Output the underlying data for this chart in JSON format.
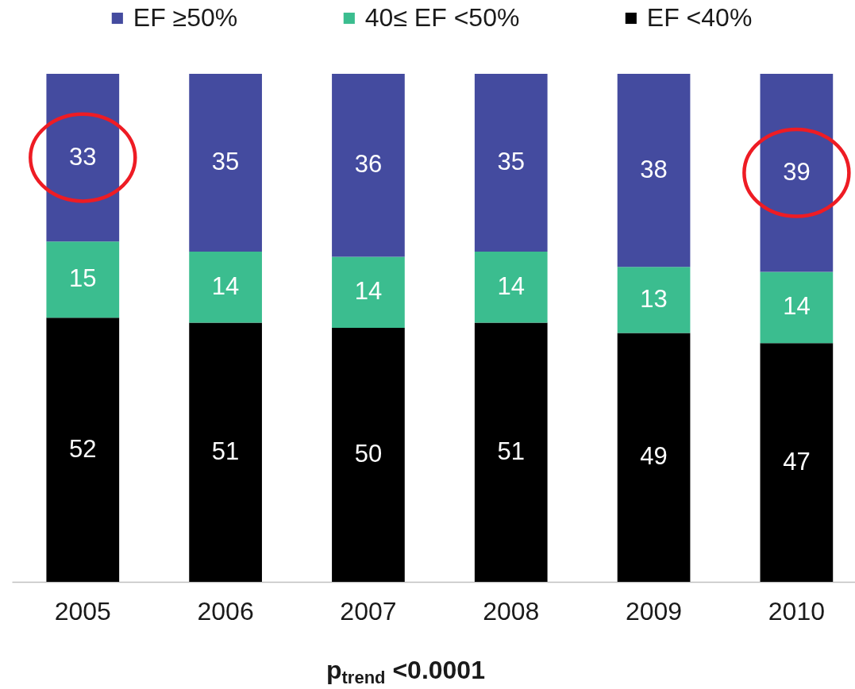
{
  "chart_data": {
    "type": "bar",
    "stacked": true,
    "categories": [
      "2005",
      "2006",
      "2007",
      "2008",
      "2009",
      "2010"
    ],
    "series": [
      {
        "name": "EF <40%",
        "color": "#000000",
        "values": [
          52,
          51,
          50,
          51,
          49,
          47
        ]
      },
      {
        "name": "40≤ EF <50%",
        "color": "#3bbd8f",
        "values": [
          15,
          14,
          14,
          14,
          13,
          14
        ]
      },
      {
        "name": "EF ≥50%",
        "color": "#444b9f",
        "values": [
          33,
          35,
          36,
          35,
          38,
          39
        ]
      }
    ],
    "data_labels": true,
    "legend": "top",
    "tick_labels": "x",
    "annotations": [
      "p$_{trend}$ <0.0001"
    ]
  }
}
